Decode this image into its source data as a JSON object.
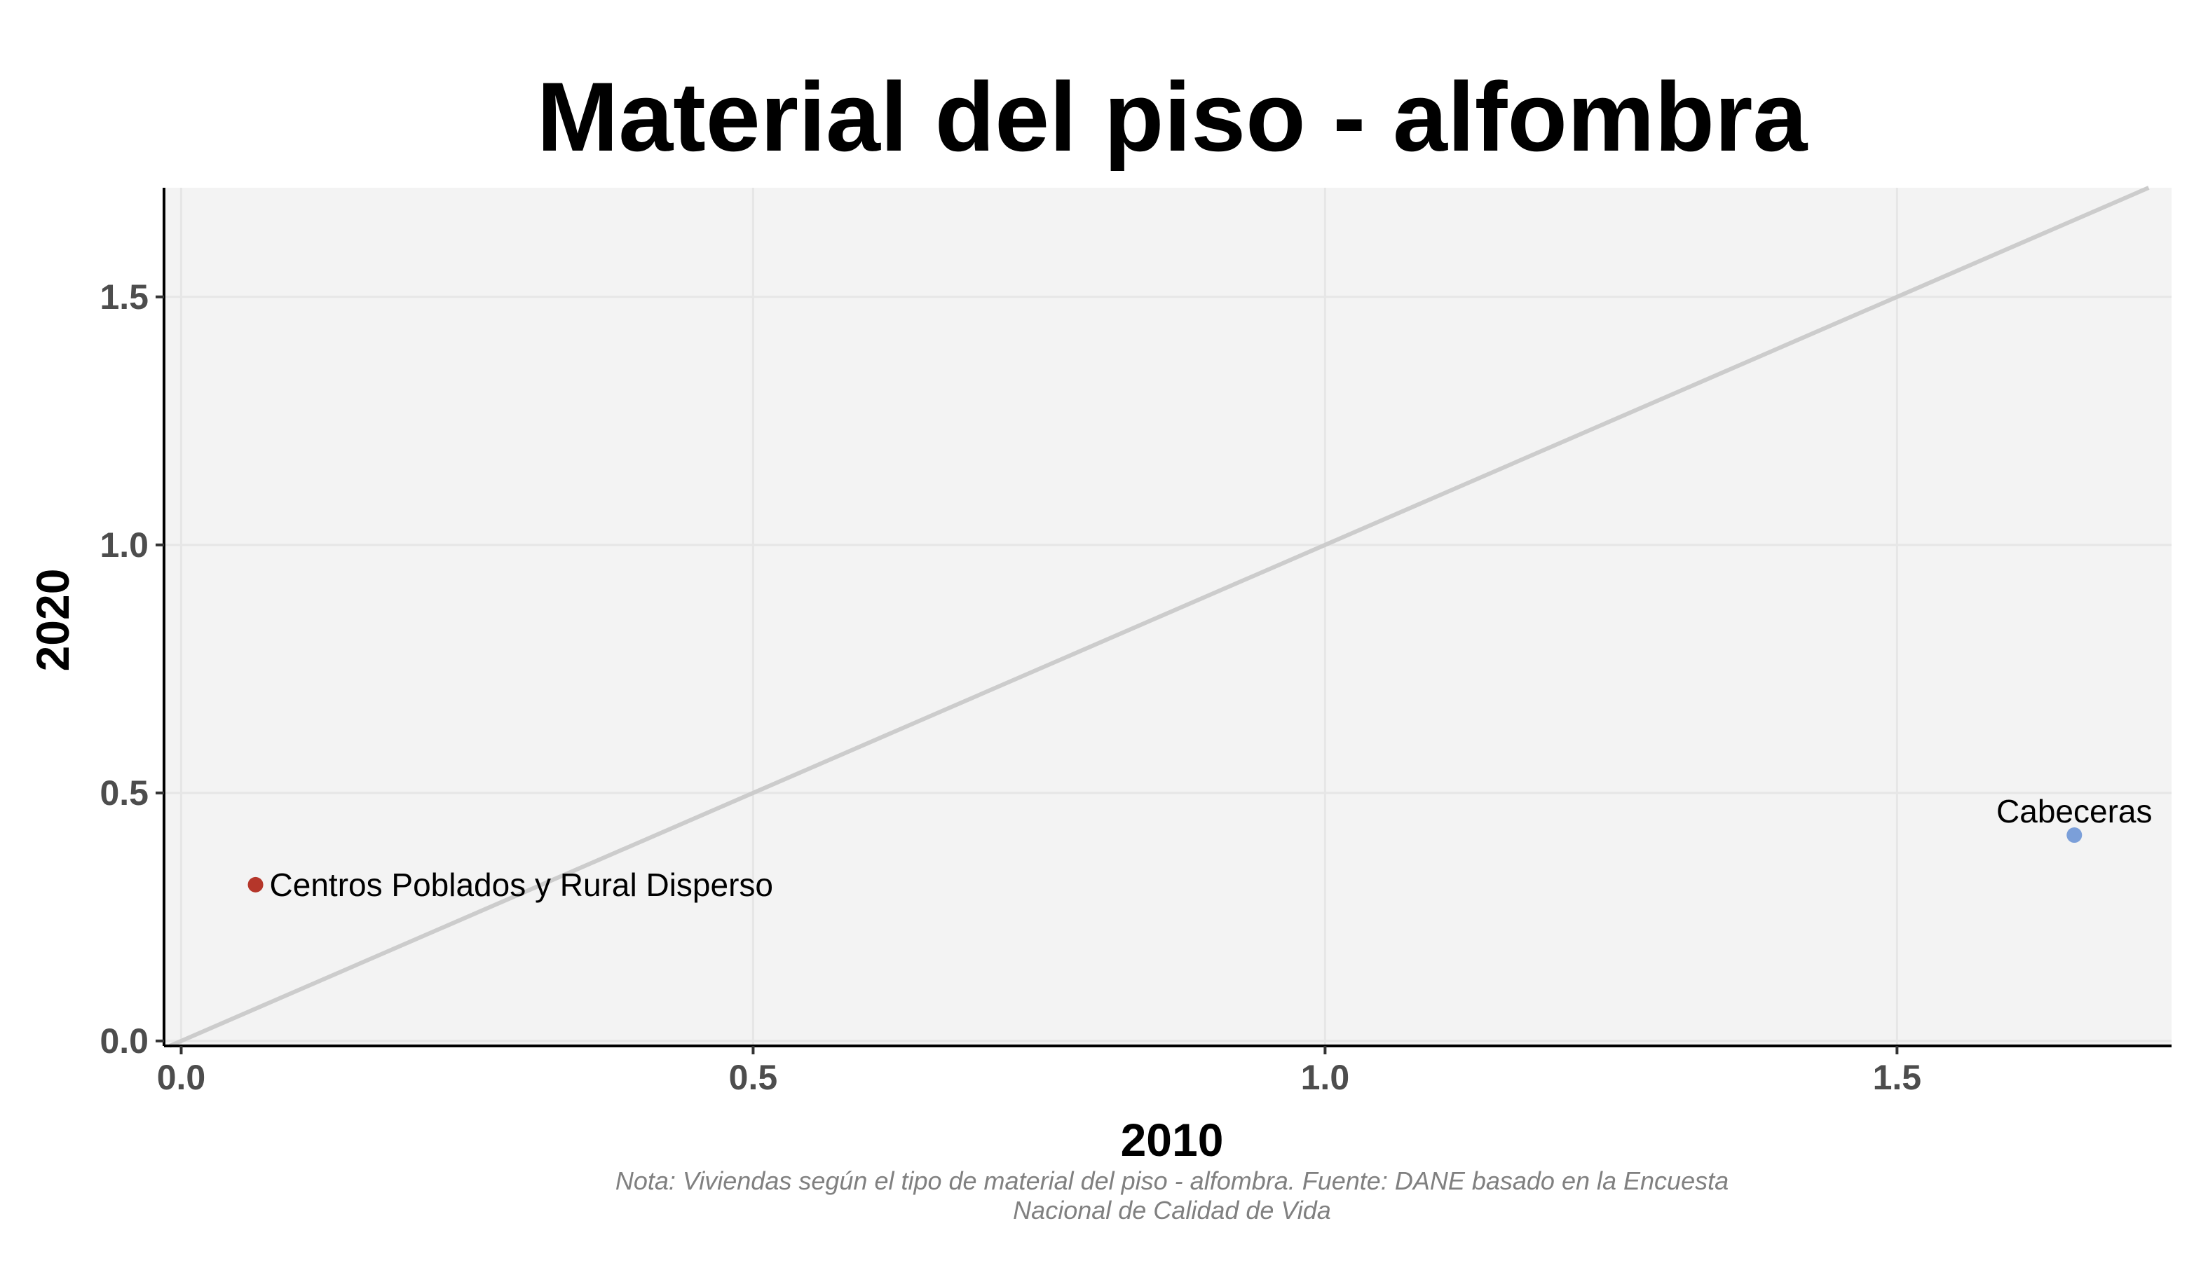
{
  "chart_data": {
    "type": "scatter",
    "title": "Material del piso - alfombra",
    "xlabel": "2010",
    "ylabel": "2020",
    "xlim": [
      -0.015,
      1.74
    ],
    "ylim": [
      -0.01,
      1.72
    ],
    "xticks": [
      0.0,
      0.5,
      1.0,
      1.5
    ],
    "yticks": [
      0.0,
      0.5,
      1.0,
      1.5
    ],
    "x_tick_labels": [
      "0.0",
      "0.5",
      "1.0",
      "1.5"
    ],
    "y_tick_labels": [
      "0.0",
      "0.5",
      "1.0",
      "1.5"
    ],
    "grid": true,
    "reference_line": "y = x",
    "points": [
      {
        "label": "Centros Poblados y Rural Disperso",
        "x": 0.065,
        "y": 0.315,
        "color": "#b5362a"
      },
      {
        "label": "Cabeceras",
        "x": 1.655,
        "y": 0.415,
        "color": "#7b9fd9"
      }
    ],
    "note": [
      "Nota: Viviendas según el tipo de material del piso - alfombra. Fuente: DANE basado en la Encuesta",
      "Nacional de Calidad de Vida"
    ]
  },
  "colors": {
    "panel_background": "#f3f3f3",
    "grid": "#e6e6e6",
    "reference_line": "#cccccc",
    "axis": "#000000"
  }
}
